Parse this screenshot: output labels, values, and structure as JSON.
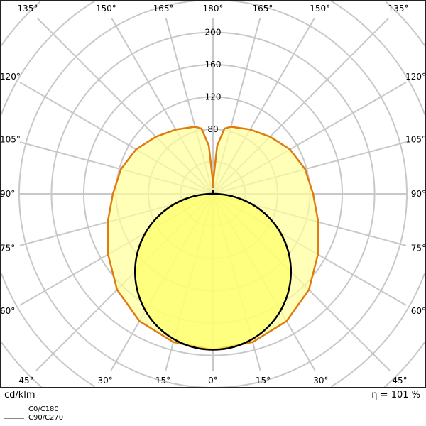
{
  "chart_data": {
    "type": "polar",
    "unit_label": "cd/klm",
    "efficiency_label": "η = 101 %",
    "radial_ticks": [
      80,
      120,
      160,
      200
    ],
    "radial_grid_step": 40,
    "radial_max_visible": 240,
    "angle_step_deg": 15,
    "angle_labels": {
      "top": [
        "135°",
        "150°",
        "165°",
        "180°",
        "165°",
        "150°",
        "135°"
      ],
      "left": [
        "120°",
        "105°",
        "90°",
        "75°",
        "60°"
      ],
      "right": [
        "120°",
        "105°",
        "90°",
        "75°",
        "60°"
      ],
      "bottom": [
        "45°",
        "30°",
        "15°",
        "0°",
        "15°",
        "30°",
        "45°"
      ]
    },
    "grid": true,
    "legend_placement": "bottom-left",
    "series": [
      {
        "name": "C0/C180",
        "color": "#e07b10",
        "legend_color": "#f0c890",
        "fill": "#ffff99",
        "angles_deg": [
          0,
          15,
          30,
          45,
          60,
          75,
          90,
          105,
          120,
          135,
          150,
          165,
          170,
          175,
          178,
          180
        ],
        "values": [
          193,
          190,
          182,
          168,
          150,
          135,
          124,
          118,
          110,
          100,
          92,
          86,
          82,
          60,
          20,
          8
        ]
      },
      {
        "name": "C90/C270",
        "color": "#000000",
        "legend_color": "#888888",
        "fill": "#ffff66",
        "angles_deg": [
          0,
          15,
          30,
          45,
          60,
          75,
          90
        ],
        "values": [
          193,
          186.4,
          167.1,
          136.5,
          96.5,
          50,
          0
        ]
      }
    ]
  }
}
